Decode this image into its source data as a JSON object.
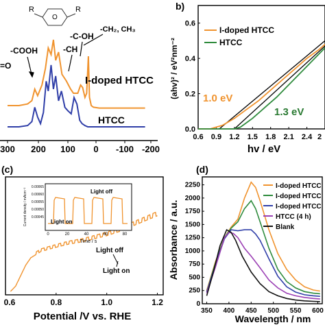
{
  "colors": {
    "orange": "#f0932e",
    "blue": "#2f3ea8",
    "green": "#2e8b3c",
    "purple": "#9b3fb4",
    "black": "#111111",
    "darkgreen": "#2a7a32"
  },
  "panel_a": {
    "labels": {
      "r1": "R",
      "r2": "R",
      "o": "O",
      "cooh": "-COOH",
      "eqo": "=O",
      "ch": "-CH",
      "coh": "-C-OH",
      "ch2ch3": "-CH₂, CH₃",
      "idoped": "I-doped HTCC",
      "htcc": "HTCC"
    },
    "xticks": [
      "300",
      "200",
      "100",
      "0",
      "-100",
      "-200"
    ]
  },
  "panel_b": {
    "tag": "b)",
    "ylabel": "(ahv)² / eV²nm⁻²",
    "xlabel": "hv / eV",
    "legend": [
      "I-doped HTCC",
      "HTCC"
    ],
    "ann1": "1.0 eV",
    "ann2": "1.3 eV",
    "xticks": [
      "0.6",
      "0.9",
      "1.2",
      "1.5",
      "1.8",
      "2.1",
      "2.4",
      "2"
    ],
    "yticks": [
      "0.0",
      "0.2",
      "0.4",
      "0.6"
    ]
  },
  "panel_c": {
    "tag": "(c)",
    "xlabel": "Potential /V vs. RHE",
    "xticks": [
      "0.6",
      "0.8",
      "1.0",
      "1.2"
    ],
    "light_off": "Light off",
    "light_on": "Light on",
    "inset": {
      "ylabel": "Current density / mAcm⁻²",
      "xlabel": "Time / s",
      "yticks": [
        "0.00065",
        "0.00060",
        "0.00055",
        "0.00050",
        "0.00045"
      ],
      "xticks": [
        "0",
        "20",
        "40",
        "60",
        "80"
      ],
      "light_off": "Light off",
      "light_on": "Light on"
    }
  },
  "panel_d": {
    "tag": "(d)",
    "ylabel": "Absorbance / a.u.",
    "xlabel": "Wavelength / nm",
    "xticks": [
      "350",
      "400",
      "450",
      "500",
      "550",
      "600"
    ],
    "yticks": [
      "0",
      "250",
      "500",
      "750",
      "1000",
      "1250",
      "1500",
      "1750",
      "2000",
      "2250"
    ],
    "legend": [
      "I-doped HTCC",
      "I-doped HTCC",
      "I-doped HTCC",
      "HTCC (4 h)",
      "Blank"
    ]
  },
  "chart_data": [
    {
      "type": "line",
      "panel": "a",
      "xlabel": "",
      "xlim": [
        300,
        -200
      ],
      "series": [
        {
          "name": "I-doped HTCC",
          "color": "#f0932e",
          "x": [
            300,
            260,
            230,
            215,
            205,
            195,
            180,
            168,
            158,
            148,
            140,
            132,
            122,
            110,
            95,
            80,
            70,
            55,
            45,
            38,
            30,
            24,
            18,
            14,
            8,
            0,
            -20,
            -50,
            -100,
            -150,
            -180
          ],
          "y": [
            0.3,
            0.3,
            0.32,
            0.36,
            0.5,
            0.42,
            0.55,
            0.75,
            1.0,
            0.92,
            1.1,
            0.85,
            0.95,
            0.68,
            0.6,
            0.5,
            0.45,
            0.45,
            0.55,
            0.52,
            0.4,
            0.45,
            0.9,
            0.4,
            0.3,
            0.28,
            0.27,
            0.27,
            0.27,
            0.27,
            0.27
          ]
        },
        {
          "name": "HTCC",
          "color": "#2f3ea8",
          "x": [
            300,
            260,
            230,
            215,
            205,
            195,
            185,
            175,
            165,
            158,
            148,
            140,
            132,
            122,
            112,
            100,
            90,
            78,
            68,
            58,
            48,
            40,
            30,
            20,
            10,
            0,
            -20,
            -50,
            -100,
            -150,
            -180
          ],
          "y": [
            0.0,
            0.0,
            0.02,
            0.08,
            0.3,
            0.15,
            0.05,
            0.22,
            0.7,
            0.55,
            0.95,
            0.58,
            0.78,
            0.4,
            0.55,
            0.3,
            0.25,
            0.2,
            0.45,
            0.35,
            0.1,
            0.05,
            0.02,
            0.0,
            0.0,
            0.0,
            0.0,
            0.0,
            0.0,
            0.0,
            0.0
          ]
        }
      ]
    },
    {
      "type": "line",
      "panel": "b",
      "xlim": [
        0.6,
        2.7
      ],
      "ylim": [
        0,
        0.7
      ],
      "series": [
        {
          "name": "I-doped HTCC",
          "color": "#f0932e",
          "x": [
            0.6,
            0.8,
            0.9,
            1.0,
            1.2,
            1.4,
            1.6,
            1.8,
            2.0,
            2.2,
            2.4,
            2.6,
            2.7
          ],
          "y": [
            0.0,
            0.0,
            0.01,
            0.02,
            0.06,
            0.11,
            0.16,
            0.22,
            0.28,
            0.34,
            0.4,
            0.45,
            0.48
          ]
        },
        {
          "name": "HTCC",
          "color": "#2e8b3c",
          "x": [
            0.6,
            1.0,
            1.2,
            1.3,
            1.5,
            1.7,
            1.9,
            2.1,
            2.3,
            2.5,
            2.7
          ],
          "y": [
            0.0,
            0.0,
            0.0,
            0.01,
            0.06,
            0.12,
            0.18,
            0.25,
            0.32,
            0.39,
            0.46
          ]
        }
      ]
    },
    {
      "type": "line",
      "panel": "c",
      "xlim": [
        0.6,
        1.2
      ],
      "series": [
        {
          "name": "",
          "color": "#f0932e",
          "x": [
            0.62,
            0.64,
            0.66,
            0.68,
            0.7,
            0.74,
            0.8,
            0.85,
            0.9,
            0.95,
            1.0,
            1.05,
            1.1,
            1.15,
            1.2
          ],
          "y": [
            0.0,
            0.05,
            0.15,
            0.25,
            0.32,
            0.38,
            0.42,
            0.45,
            0.47,
            0.5,
            0.53,
            0.57,
            0.62,
            0.67,
            0.72
          ]
        }
      ]
    },
    {
      "type": "line",
      "panel": "d",
      "xlabel": "Wavelength / nm",
      "ylabel": "Absorbance / a.u.",
      "xlim": [
        340,
        610
      ],
      "ylim": [
        0,
        2400
      ],
      "series": [
        {
          "name": "I-doped HTCC",
          "color": "#f0932e",
          "x": [
            350,
            370,
            390,
            405,
            420,
            435,
            450,
            460,
            470,
            490,
            510,
            530,
            550,
            570,
            590,
            605
          ],
          "y": [
            250,
            800,
            1250,
            1450,
            1600,
            2000,
            2300,
            2200,
            1950,
            1400,
            950,
            650,
            450,
            320,
            260,
            240
          ]
        },
        {
          "name": "I-doped HTCC",
          "color": "#2e8b3c",
          "x": [
            350,
            370,
            390,
            405,
            420,
            435,
            450,
            460,
            470,
            490,
            510,
            530,
            550,
            570,
            590,
            605
          ],
          "y": [
            230,
            780,
            1250,
            1430,
            1550,
            1800,
            1950,
            1800,
            1550,
            1050,
            650,
            420,
            300,
            230,
            200,
            190
          ]
        },
        {
          "name": "I-doped HTCC",
          "color": "#2f3ea8",
          "x": [
            350,
            370,
            390,
            405,
            420,
            435,
            450,
            460,
            470,
            490,
            510,
            530,
            550,
            570,
            590,
            605
          ],
          "y": [
            220,
            750,
            1230,
            1400,
            1380,
            1400,
            1400,
            1320,
            1200,
            850,
            520,
            320,
            220,
            170,
            150,
            140
          ]
        },
        {
          "name": "HTCC (4 h)",
          "color": "#9b3fb4",
          "x": [
            350,
            370,
            390,
            400,
            410,
            420,
            435,
            450,
            470,
            490,
            510,
            530,
            550,
            570,
            590,
            605
          ],
          "y": [
            200,
            700,
            1250,
            1350,
            1330,
            1250,
            1050,
            900,
            680,
            450,
            300,
            200,
            150,
            120,
            100,
            90
          ]
        },
        {
          "name": "Blank",
          "color": "#111111",
          "x": [
            350,
            365,
            380,
            395,
            405,
            415,
            430,
            450,
            470,
            490,
            510,
            530,
            550,
            570,
            590,
            605
          ],
          "y": [
            150,
            600,
            1100,
            1400,
            1350,
            1200,
            900,
            600,
            380,
            230,
            150,
            100,
            70,
            55,
            45,
            40
          ]
        }
      ]
    }
  ]
}
